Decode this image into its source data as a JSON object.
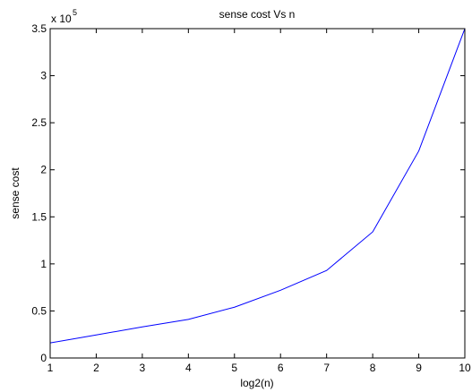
{
  "chart_data": {
    "type": "line",
    "title": "sense cost Vs n",
    "xlabel": "log2(n)",
    "ylabel": "sense cost",
    "y_multiplier_base": "x 10",
    "y_multiplier_exponent": "5",
    "xlim": [
      1,
      10
    ],
    "ylim": [
      0,
      3.5
    ],
    "x_ticks": [
      1,
      2,
      3,
      4,
      5,
      6,
      7,
      8,
      9,
      10
    ],
    "y_ticks": [
      0,
      0.5,
      1,
      1.5,
      2,
      2.5,
      3,
      3.5
    ],
    "y_tick_labels": [
      "0",
      "0.5",
      "1",
      "1.5",
      "2",
      "2.5",
      "3",
      "3.5"
    ],
    "grid": false,
    "series": [
      {
        "color": "#0000ff",
        "x": [
          1,
          2,
          3,
          4,
          5,
          6,
          7,
          8,
          9,
          10
        ],
        "y": [
          0.16,
          0.245,
          0.33,
          0.41,
          0.54,
          0.72,
          0.93,
          1.34,
          2.2,
          3.5
        ]
      }
    ]
  }
}
